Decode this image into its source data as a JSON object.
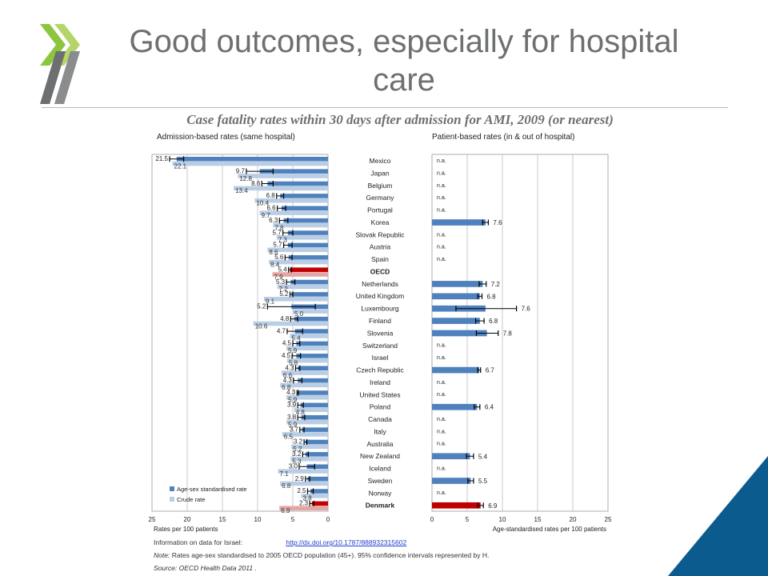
{
  "slide": {
    "title": "Good outcomes, especially for hospital care",
    "subtitle": "Case fatality rates within 30 days after admission for AMI, 2009 (or nearest)"
  },
  "colors": {
    "standardised": "#4f81bd",
    "crude": "#b9cde5",
    "oecd_standardised": "#c00000",
    "oecd_crude": "#e6a5a5",
    "logo_green_dark": "#8cc63f",
    "logo_green_light": "#b5d56a",
    "logo_grey": "#6d6f71",
    "corner_blue": "#0b5b8f"
  },
  "icons": {
    "logo": "oecd-chevron-logo",
    "corner": "corner-triangle-decoration"
  },
  "chart_data": {
    "type": "bar",
    "orientation": "horizontal",
    "countries": [
      "Mexico",
      "Japan",
      "Belgium",
      "Germany",
      "Portugal",
      "Korea",
      "Slovak Republic",
      "Austria",
      "Spain",
      "OECD",
      "Netherlands",
      "United Kingdom",
      "Luxembourg",
      "Finland",
      "Slovenia",
      "Switzerland",
      "Israel",
      "Czech Republic",
      "Ireland",
      "United States",
      "Poland",
      "Canada",
      "Italy",
      "Australia",
      "New Zealand",
      "Iceland",
      "Sweden",
      "Norway",
      "Denmark"
    ],
    "highlight": [
      "OECD",
      "Denmark"
    ],
    "left": {
      "title": "Admission-based rates (same hospital)",
      "xlabel": "Rates per 100 patients",
      "xlim": [
        25,
        0
      ],
      "ticks": [
        "25",
        "20",
        "15",
        "10",
        "5",
        "0"
      ],
      "legend": {
        "position": "bottom-left",
        "standardised": "Age-sex standardised rate",
        "crude": "Crude rate"
      },
      "standardised": [
        21.5,
        9.7,
        8.6,
        6.8,
        6.6,
        6.3,
        5.7,
        5.7,
        5.6,
        5.4,
        5.3,
        5.2,
        5.2,
        4.8,
        4.7,
        4.5,
        4.5,
        4.3,
        4.3,
        4.3,
        3.9,
        3.8,
        3.7,
        3.2,
        3.2,
        3.0,
        2.9,
        2.5,
        2.3
      ],
      "crude": [
        22.1,
        12.8,
        13.4,
        10.4,
        9.7,
        7.8,
        7.3,
        8.6,
        8.4,
        7.9,
        7.2,
        9.1,
        5.0,
        10.6,
        5.4,
        5.9,
        5.8,
        6.6,
        6.8,
        5.9,
        4.8,
        5.9,
        6.5,
        5.2,
        5.3,
        7.1,
        6.8,
        3.8,
        6.9
      ],
      "standardised_labels": [
        "21.5",
        "9.7",
        "8.6",
        "6.8",
        "6.6",
        "6.3",
        "5.7",
        "5.7",
        "5.6",
        "5.4",
        "5.3",
        "5.2",
        "5.2",
        "4.8",
        "4.7",
        "4.5",
        "4.5",
        "4.3",
        "4.3",
        "4.3",
        "3.9",
        "3.8",
        "3.7",
        "3.2",
        "3.2",
        "3.0",
        "2.9",
        "2.5",
        "2.3"
      ],
      "crude_labels": [
        "22.1",
        "12.8",
        "13.4",
        "10.4",
        "9.7",
        "7.8",
        "7.3",
        "8.6",
        "8.4",
        "7.9",
        "7.2",
        "9.1",
        "5.0",
        "10.6",
        "5.4",
        "5.9",
        "5.8",
        "6.6",
        "6.8",
        "5.9",
        "4.8",
        "5.9",
        "6.5",
        "5.2",
        "5.3",
        "7.1",
        "6.8",
        "3.8",
        "6.9"
      ],
      "ci": [
        [
          20.5,
          22.5
        ],
        [
          7.8,
          11.6
        ],
        [
          7.8,
          9.4
        ],
        [
          6.3,
          7.3
        ],
        [
          6.0,
          7.2
        ],
        [
          5.7,
          6.9
        ],
        [
          5.0,
          6.4
        ],
        [
          5.1,
          6.3
        ],
        [
          5.1,
          6.1
        ],
        [
          5.2,
          5.6
        ],
        [
          4.7,
          5.9
        ],
        [
          5.0,
          5.4
        ],
        [
          1.8,
          8.6
        ],
        [
          4.3,
          5.3
        ],
        [
          3.6,
          5.8
        ],
        [
          4.0,
          5.0
        ],
        [
          3.9,
          5.1
        ],
        [
          4.0,
          4.6
        ],
        [
          3.7,
          4.9
        ],
        [
          4.2,
          4.4
        ],
        [
          3.5,
          4.3
        ],
        [
          3.3,
          4.3
        ],
        [
          3.4,
          4.0
        ],
        [
          3.0,
          3.4
        ],
        [
          2.8,
          3.6
        ],
        [
          1.9,
          4.1
        ],
        [
          2.6,
          3.2
        ],
        [
          2.1,
          2.9
        ],
        [
          2.0,
          2.6
        ]
      ]
    },
    "right": {
      "title": "Patient-based rates (in & out of hospital)",
      "xlabel": "Age-standardised rates per 100 patients",
      "xlim": [
        0,
        25
      ],
      "ticks": [
        "0",
        "5",
        "10",
        "15",
        "20",
        "25"
      ],
      "values": [
        null,
        null,
        null,
        null,
        null,
        7.6,
        null,
        null,
        null,
        null,
        7.2,
        6.8,
        7.6,
        6.8,
        7.8,
        null,
        null,
        6.7,
        null,
        null,
        6.4,
        null,
        null,
        null,
        5.4,
        null,
        5.5,
        null,
        6.9
      ],
      "labels": [
        "n.a.",
        "n.a.",
        "n.a.",
        "n.a.",
        "n.a.",
        "7.6",
        "n.a.",
        "n.a.",
        "n.a.",
        "",
        "7.2",
        "6.8",
        "7.6",
        "6.8",
        "7.8",
        "n.a.",
        "n.a.",
        "6.7",
        "n.a.",
        "n.a.",
        "6.4",
        "n.a.",
        "n.a.",
        "n.a.",
        "5.4",
        "n.a.",
        "5.5",
        "n.a.",
        "6.9"
      ],
      "ci": [
        null,
        null,
        null,
        null,
        null,
        [
          7.2,
          8.0
        ],
        null,
        null,
        null,
        null,
        [
          6.7,
          7.7
        ],
        [
          6.5,
          7.1
        ],
        [
          3.4,
          12.0
        ],
        [
          6.2,
          7.4
        ],
        [
          6.3,
          9.4
        ],
        null,
        null,
        [
          6.5,
          6.9
        ],
        null,
        null,
        [
          6.0,
          6.8
        ],
        null,
        null,
        null,
        [
          4.9,
          5.9
        ],
        null,
        [
          5.1,
          5.9
        ],
        null,
        [
          6.5,
          7.3
        ]
      ]
    }
  },
  "notes": {
    "info_label": "Information on data for Israel:",
    "info_link": "http://dx.doi.org/10.1787/888932315602",
    "note_label": "Note:",
    "note_text": "Rates age-sex standardised to 2005 OECD population (45+). 95% confidence intervals represented by H.",
    "source": "Source: OECD Health Data 2011 ."
  }
}
